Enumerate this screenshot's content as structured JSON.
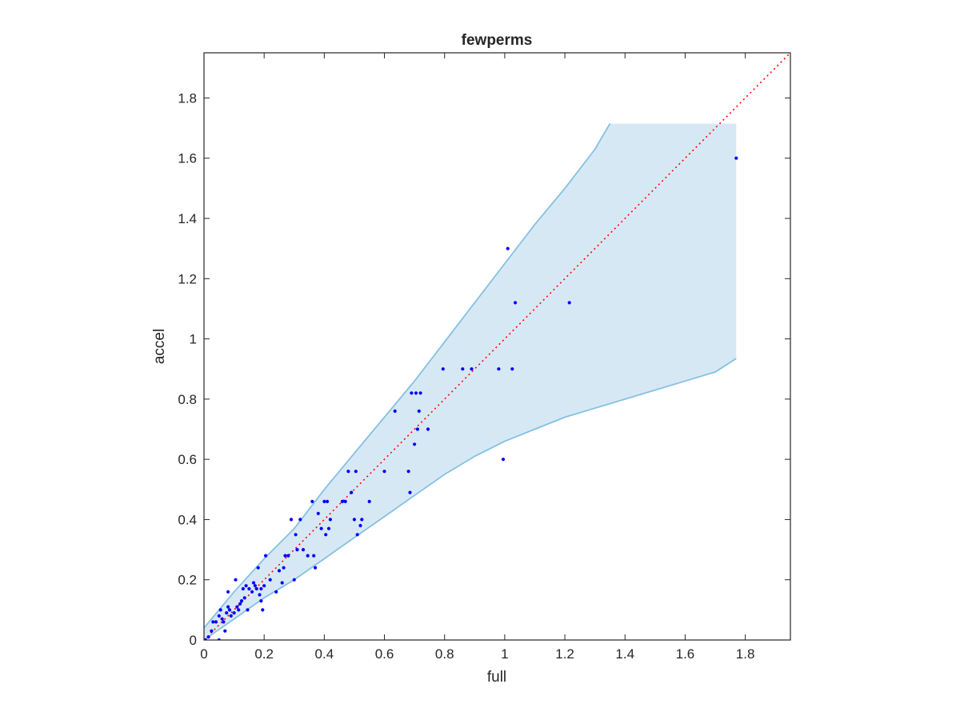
{
  "chart_data": {
    "type": "scatter",
    "title": "fewperms",
    "xlabel": "full",
    "ylabel": "accel",
    "xlim": [
      0,
      1.95
    ],
    "ylim": [
      0,
      1.95
    ],
    "xticks": [
      0,
      0.2,
      0.4,
      0.6,
      0.8,
      1,
      1.2,
      1.4,
      1.6,
      1.8
    ],
    "xtick_labels": [
      "0",
      "0.2",
      "0.4",
      "0.6",
      "0.8",
      "1",
      "1.2",
      "1.4",
      "1.6",
      "1.8"
    ],
    "yticks": [
      0,
      0.2,
      0.4,
      0.6,
      0.8,
      1,
      1.2,
      1.4,
      1.6,
      1.8
    ],
    "ytick_labels": [
      "0",
      "0.2",
      "0.4",
      "0.6",
      "0.8",
      "1",
      "1.2",
      "1.4",
      "1.6",
      "1.8"
    ],
    "grid": false,
    "reference_line": {
      "x": [
        0,
        1.95
      ],
      "y": [
        0,
        1.95
      ],
      "style": "dotted",
      "color": "#ff0000"
    },
    "band": {
      "fill_color": "#d7e8f5",
      "edge_color": "#85c0e3",
      "upper": {
        "x": [
          0,
          0.05,
          0.1,
          0.2,
          0.3,
          0.4,
          0.5,
          0.6,
          0.7,
          0.8,
          0.9,
          1.0,
          1.1,
          1.2,
          1.3,
          1.35
        ],
        "y": [
          0.04,
          0.1,
          0.16,
          0.27,
          0.37,
          0.5,
          0.62,
          0.74,
          0.86,
          0.99,
          1.12,
          1.25,
          1.38,
          1.5,
          1.63,
          1.715
        ]
      },
      "lower": {
        "x": [
          0,
          0.05,
          0.1,
          0.2,
          0.3,
          0.4,
          0.5,
          0.6,
          0.7,
          0.8,
          0.9,
          1.0,
          1.1,
          1.2,
          1.3,
          1.4,
          1.5,
          1.6,
          1.7,
          1.77
        ],
        "y": [
          0,
          0.035,
          0.07,
          0.14,
          0.2,
          0.27,
          0.34,
          0.41,
          0.48,
          0.55,
          0.61,
          0.66,
          0.7,
          0.74,
          0.77,
          0.8,
          0.83,
          0.86,
          0.89,
          0.935
        ]
      },
      "x_max": 1.77,
      "y_top": 1.715
    },
    "series": [
      {
        "marker_color": "#0000ff",
        "x": [
          0.005,
          0.015,
          0.025,
          0.03,
          0.04,
          0.05,
          0.05,
          0.055,
          0.06,
          0.065,
          0.07,
          0.075,
          0.08,
          0.08,
          0.085,
          0.09,
          0.1,
          0.105,
          0.11,
          0.115,
          0.12,
          0.125,
          0.13,
          0.135,
          0.14,
          0.145,
          0.15,
          0.16,
          0.165,
          0.17,
          0.175,
          0.18,
          0.185,
          0.19,
          0.19,
          0.195,
          0.2,
          0.205,
          0.22,
          0.24,
          0.25,
          0.26,
          0.265,
          0.27,
          0.28,
          0.29,
          0.3,
          0.305,
          0.31,
          0.32,
          0.33,
          0.345,
          0.36,
          0.365,
          0.37,
          0.38,
          0.39,
          0.4,
          0.405,
          0.41,
          0.415,
          0.42,
          0.46,
          0.47,
          0.48,
          0.49,
          0.5,
          0.505,
          0.51,
          0.52,
          0.525,
          0.55,
          0.6,
          0.635,
          0.68,
          0.685,
          0.69,
          0.7,
          0.705,
          0.71,
          0.715,
          0.72,
          0.745,
          0.795,
          0.86,
          0.89,
          0.98,
          0.995,
          1.01,
          1.025,
          1.035,
          1.215,
          1.77
        ],
        "y": [
          0.0,
          0.01,
          0.03,
          0.06,
          0.06,
          0.0,
          0.08,
          0.1,
          0.07,
          0.06,
          0.03,
          0.09,
          0.11,
          0.16,
          0.1,
          0.08,
          0.09,
          0.2,
          0.11,
          0.1,
          0.12,
          0.13,
          0.17,
          0.14,
          0.18,
          0.1,
          0.17,
          0.16,
          0.19,
          0.18,
          0.17,
          0.24,
          0.15,
          0.13,
          0.17,
          0.1,
          0.18,
          0.28,
          0.2,
          0.16,
          0.23,
          0.19,
          0.24,
          0.28,
          0.28,
          0.4,
          0.2,
          0.35,
          0.3,
          0.4,
          0.3,
          0.28,
          0.46,
          0.28,
          0.24,
          0.42,
          0.37,
          0.46,
          0.35,
          0.46,
          0.37,
          0.4,
          0.46,
          0.46,
          0.56,
          0.49,
          0.4,
          0.56,
          0.35,
          0.38,
          0.4,
          0.46,
          0.56,
          0.76,
          0.56,
          0.49,
          0.82,
          0.65,
          0.82,
          0.7,
          0.76,
          0.82,
          0.7,
          0.9,
          0.9,
          0.9,
          0.9,
          0.6,
          1.3,
          0.9,
          1.12,
          1.12,
          1.6
        ]
      }
    ]
  }
}
